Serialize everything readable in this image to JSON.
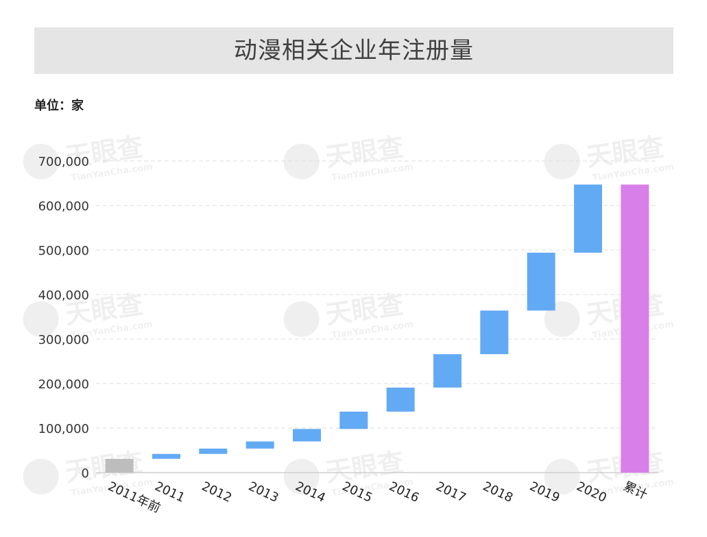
{
  "title": "动漫相关企业年注册量",
  "unit_label": "单位：家",
  "watermark_text": "天眼查",
  "watermark_sub": "TianYanCha.com",
  "colors": {
    "increment": "#63aaf5",
    "base": "#bdbdbd",
    "total": "#d97fe9",
    "title_band": "#e5e5e5",
    "grid": "#dcdcdc"
  },
  "chart_data": {
    "type": "bar",
    "subtype": "waterfall",
    "categories": [
      "2011年前",
      "2011",
      "2012",
      "2013",
      "2014",
      "2015",
      "2016",
      "2017",
      "2018",
      "2019",
      "2020",
      "累计"
    ],
    "starts": [
      0,
      31000,
      42000,
      54000,
      70000,
      98000,
      137000,
      191000,
      266000,
      364000,
      494000,
      0
    ],
    "ends": [
      31000,
      42000,
      54000,
      70000,
      98000,
      137000,
      191000,
      266000,
      364000,
      494000,
      647000,
      647000
    ],
    "kinds": [
      "base",
      "increment",
      "increment",
      "increment",
      "increment",
      "increment",
      "increment",
      "increment",
      "increment",
      "increment",
      "increment",
      "total"
    ],
    "yticks": [
      "0",
      "100,000",
      "200,000",
      "300,000",
      "400,000",
      "500,000",
      "600,000",
      "700,000"
    ],
    "ylim": [
      0,
      700000
    ],
    "grid": true,
    "legend": "none"
  }
}
